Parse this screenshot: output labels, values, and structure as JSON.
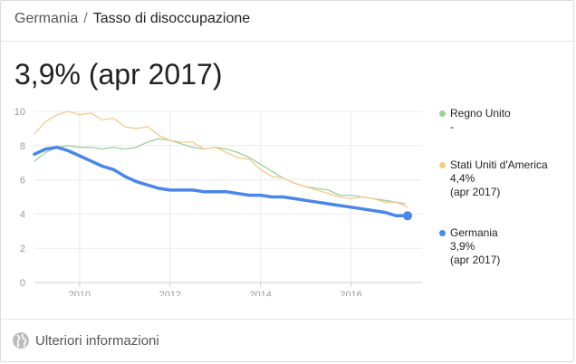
{
  "breadcrumb": {
    "country": "Germania",
    "separator": "/",
    "metric": "Tasso di disoccupazione"
  },
  "headline": "3,9% (apr 2017)",
  "legend": [
    {
      "name": "Regno Unito",
      "value": "-",
      "date": "",
      "color": "#9ed09e"
    },
    {
      "name": "Stati Uniti d'America",
      "value": "4,4%",
      "date": "(apr 2017)",
      "color": "#f6c890"
    },
    {
      "name": "Germania",
      "value": "3,9%",
      "date": "(apr 2017)",
      "color": "#4a86e8"
    }
  ],
  "footer": {
    "label": "Ulteriori informazioni",
    "icon": "globe-icon"
  },
  "chart_data": {
    "type": "line",
    "xlim": [
      2009.0,
      2017.45
    ],
    "ylim": [
      0,
      10
    ],
    "x_ticks": [
      2010,
      2012,
      2014,
      2016
    ],
    "x_tick_labels": [
      "2010",
      "2012",
      "2014",
      "2016"
    ],
    "y_ticks": [
      0,
      2,
      4,
      6,
      8,
      10
    ],
    "y_tick_labels": [
      "0",
      "2",
      "4",
      "6",
      "8",
      "10"
    ],
    "grid": true,
    "legend_position": "right",
    "series": [
      {
        "name": "Regno Unito",
        "color": "#9ed09e",
        "x": [
          2009.0,
          2009.25,
          2009.5,
          2009.75,
          2010.0,
          2010.25,
          2010.5,
          2010.75,
          2011.0,
          2011.25,
          2011.5,
          2011.75,
          2012.0,
          2012.25,
          2012.5,
          2012.75,
          2013.0,
          2013.25,
          2013.5,
          2013.75,
          2014.0,
          2014.25,
          2014.5,
          2014.75,
          2015.0,
          2015.25,
          2015.5,
          2015.75,
          2016.0,
          2016.25,
          2016.5,
          2016.75,
          2017.0,
          2017.2
        ],
        "y": [
          7.1,
          7.6,
          7.9,
          8.0,
          7.9,
          7.9,
          7.8,
          7.9,
          7.8,
          7.9,
          8.2,
          8.4,
          8.3,
          8.1,
          7.9,
          7.8,
          7.9,
          7.8,
          7.6,
          7.3,
          6.9,
          6.5,
          6.1,
          5.8,
          5.6,
          5.5,
          5.4,
          5.1,
          5.1,
          5.0,
          4.9,
          4.8,
          4.7,
          4.6
        ]
      },
      {
        "name": "Stati Uniti d'America",
        "color": "#f6c890",
        "x": [
          2009.0,
          2009.25,
          2009.5,
          2009.75,
          2010.0,
          2010.25,
          2010.5,
          2010.75,
          2011.0,
          2011.25,
          2011.5,
          2011.75,
          2012.0,
          2012.25,
          2012.5,
          2012.75,
          2013.0,
          2013.25,
          2013.5,
          2013.75,
          2014.0,
          2014.25,
          2014.5,
          2014.75,
          2015.0,
          2015.25,
          2015.5,
          2015.75,
          2016.0,
          2016.25,
          2016.5,
          2016.75,
          2017.0,
          2017.25
        ],
        "y": [
          8.7,
          9.4,
          9.8,
          10.0,
          9.8,
          9.9,
          9.5,
          9.6,
          9.1,
          9.0,
          9.1,
          8.6,
          8.3,
          8.2,
          8.2,
          7.8,
          7.9,
          7.6,
          7.3,
          7.2,
          6.6,
          6.2,
          6.1,
          5.8,
          5.6,
          5.4,
          5.2,
          5.0,
          4.9,
          5.0,
          4.9,
          4.7,
          4.7,
          4.4
        ]
      },
      {
        "name": "Germania",
        "color": "#4a86e8",
        "x": [
          2009.0,
          2009.25,
          2009.5,
          2009.75,
          2010.0,
          2010.25,
          2010.5,
          2010.75,
          2011.0,
          2011.25,
          2011.5,
          2011.75,
          2012.0,
          2012.25,
          2012.5,
          2012.75,
          2013.0,
          2013.25,
          2013.5,
          2013.75,
          2014.0,
          2014.25,
          2014.5,
          2014.75,
          2015.0,
          2015.25,
          2015.5,
          2015.75,
          2016.0,
          2016.25,
          2016.5,
          2016.75,
          2017.0,
          2017.25
        ],
        "y": [
          7.5,
          7.8,
          7.9,
          7.7,
          7.4,
          7.1,
          6.8,
          6.6,
          6.2,
          5.9,
          5.7,
          5.5,
          5.4,
          5.4,
          5.4,
          5.3,
          5.3,
          5.3,
          5.2,
          5.1,
          5.1,
          5.0,
          5.0,
          4.9,
          4.8,
          4.7,
          4.6,
          4.5,
          4.4,
          4.3,
          4.2,
          4.1,
          3.9,
          3.9
        ]
      }
    ]
  }
}
